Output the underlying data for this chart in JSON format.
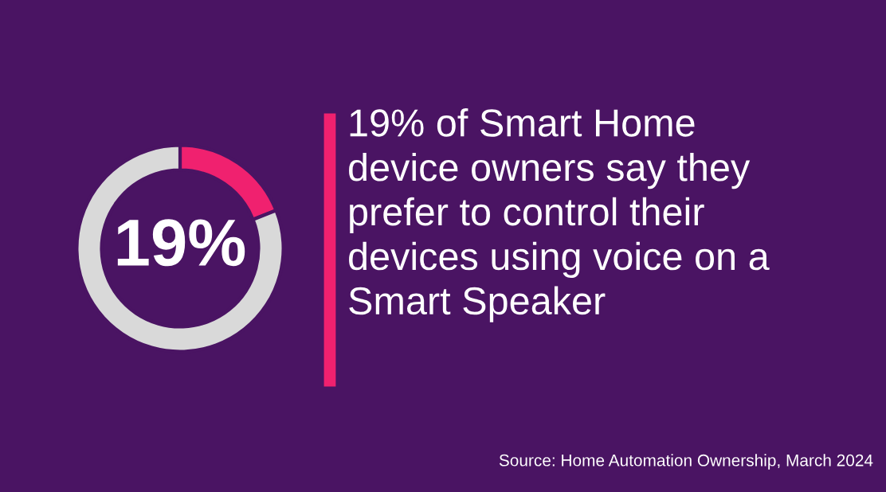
{
  "chart_data": {
    "type": "donut",
    "title": "19% of Smart Home\ndevice owners say they\nprefer to control their\ndevices using voice on a\nSmart Speaker",
    "categories": [
      null,
      null
    ],
    "values": [
      19,
      81
    ],
    "colors": [
      "#f0216f",
      "#d9d9d9"
    ],
    "value_labels": [
      "19%",
      null
    ],
    "annotations": [
      "Source: Home Automation Ownership, March 2024"
    ],
    "legend": false
  }
}
